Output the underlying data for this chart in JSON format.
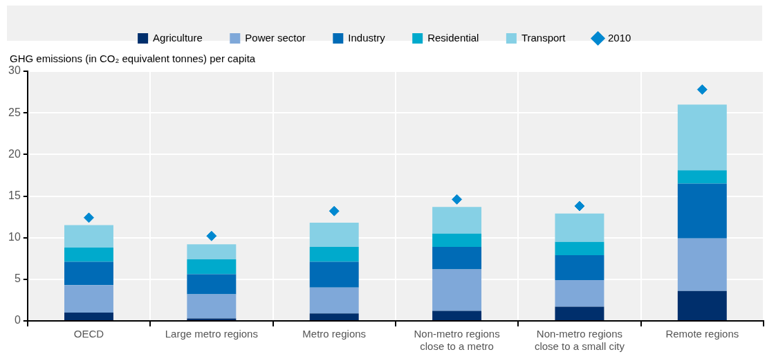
{
  "chart_data": {
    "type": "bar",
    "stacked": true,
    "ylabel": "GHG emissions (in CO₂ equivalent tonnes) per capita",
    "categories": [
      "OECD",
      "Large metro regions",
      "Metro regions",
      "Non-metro regions close to a metro",
      "Non-metro regions close to a small city",
      "Remote regions"
    ],
    "series": [
      {
        "name": "Agriculture",
        "color": "#002f6c",
        "values": [
          1.0,
          0.3,
          0.9,
          1.2,
          1.7,
          3.6
        ]
      },
      {
        "name": "Power sector",
        "color": "#7fa8d9",
        "values": [
          3.3,
          2.9,
          3.1,
          5.0,
          3.2,
          6.3
        ]
      },
      {
        "name": "Industry",
        "color": "#006bb6",
        "values": [
          2.8,
          2.4,
          3.1,
          2.7,
          3.0,
          6.6
        ]
      },
      {
        "name": "Residential",
        "color": "#00aacc",
        "values": [
          1.7,
          1.8,
          1.8,
          1.6,
          1.6,
          1.6
        ]
      },
      {
        "name": "Transport",
        "color": "#86d0e5",
        "values": [
          2.7,
          1.8,
          2.9,
          3.2,
          3.4,
          7.9
        ]
      },
      {
        "name": "2010",
        "type": "scatter",
        "marker": "diamond",
        "color": "#0088d0",
        "values": [
          12.4,
          10.2,
          13.2,
          14.6,
          13.8,
          27.8
        ]
      }
    ],
    "ylim": [
      0,
      30
    ],
    "yticks": [
      0,
      5,
      10,
      15,
      20,
      25,
      30
    ],
    "grid": true,
    "legend": "top"
  }
}
